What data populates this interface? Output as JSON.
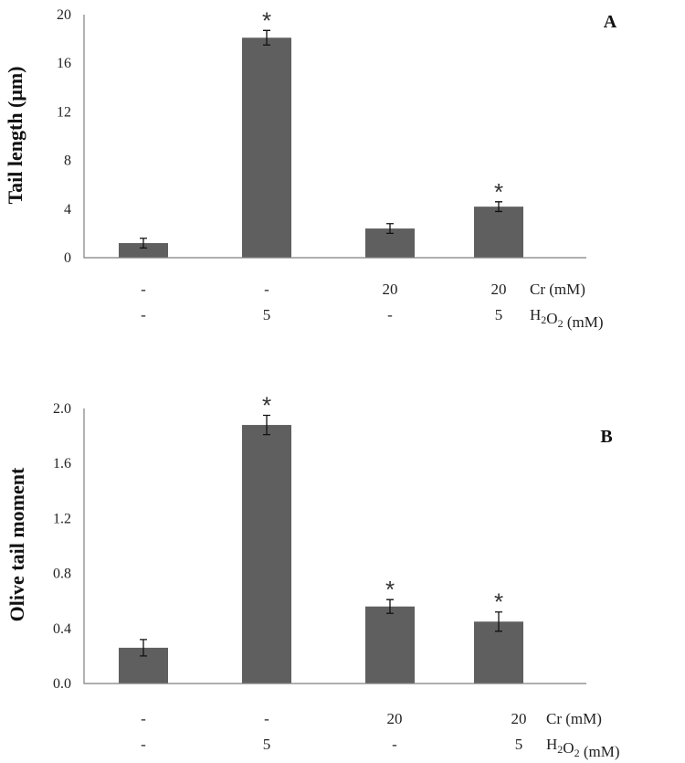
{
  "chart_data": [
    {
      "type": "bar",
      "panel": "A",
      "ylabel": "Tail length (μm)",
      "ylim": [
        0,
        20
      ],
      "yticks": [
        "0",
        "4",
        "8",
        "12",
        "16",
        "20"
      ],
      "ytick_values": [
        0,
        4,
        8,
        12,
        16,
        20
      ],
      "values": [
        1.2,
        18.1,
        2.4,
        4.2
      ],
      "errors": [
        0.4,
        0.6,
        0.4,
        0.4
      ],
      "significant": [
        "",
        "*",
        "",
        "*"
      ],
      "condition_rows": [
        {
          "label": "Cr (mM)",
          "values": [
            "-",
            "-",
            "20",
            "20"
          ]
        },
        {
          "label_main": "H",
          "label_sub1": "2",
          "label_mid": "O",
          "label_sub2": "2",
          "label_tail": " (mM)",
          "values": [
            "-",
            "5",
            "-",
            "5"
          ]
        }
      ]
    },
    {
      "type": "bar",
      "panel": "B",
      "ylabel": "Olive tail moment",
      "ylim": [
        0,
        2.0
      ],
      "yticks": [
        "0.0",
        "0.4",
        "0.8",
        "1.2",
        "1.6",
        "2.0"
      ],
      "ytick_values": [
        0,
        0.4,
        0.8,
        1.2,
        1.6,
        2.0
      ],
      "values": [
        0.26,
        1.88,
        0.56,
        0.45
      ],
      "errors": [
        0.06,
        0.07,
        0.05,
        0.07
      ],
      "significant": [
        "",
        "*",
        "*",
        "*"
      ],
      "condition_rows": [
        {
          "label": "Cr (mM)",
          "values": [
            "-",
            "-",
            "20",
            "20"
          ]
        },
        {
          "label_main": "H",
          "label_sub1": "2",
          "label_mid": "O",
          "label_sub2": "2",
          "label_tail": " (mM)",
          "values": [
            "-",
            "5",
            "-",
            "5"
          ]
        }
      ]
    }
  ]
}
